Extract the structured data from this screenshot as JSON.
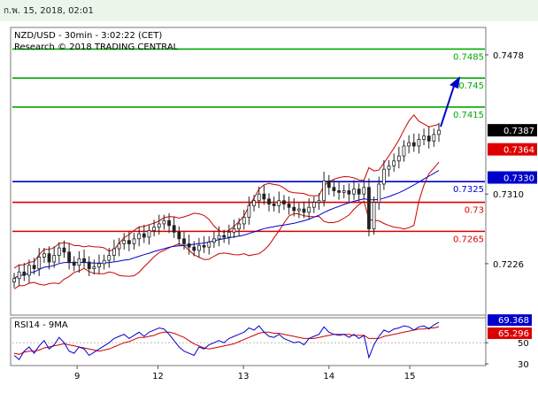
{
  "header": {
    "datetime": "ก.พ. 15, 2018, 02:01"
  },
  "chart_data": {
    "type": "candlestick",
    "title": "NZD/USD - 30min - 3:02:22 (CET)",
    "subtitle": "Research © 2018 TRADING CENTRAL",
    "ylim": [
      0.7165,
      0.751
    ],
    "y_ticks": [
      "0.7478",
      "0.7310",
      "0.7226"
    ],
    "x_ticks": [
      {
        "label": "9",
        "pos": 0.14
      },
      {
        "label": "12",
        "pos": 0.31
      },
      {
        "label": "13",
        "pos": 0.49
      },
      {
        "label": "14",
        "pos": 0.67
      },
      {
        "label": "15",
        "pos": 0.84
      }
    ],
    "levels": [
      {
        "value": 0.7485,
        "label": "0.7485",
        "color": "#00aa00"
      },
      {
        "value": 0.745,
        "label": "0.745",
        "color": "#00aa00"
      },
      {
        "value": 0.7415,
        "label": "0.7415",
        "color": "#00aa00"
      },
      {
        "value": 0.7325,
        "label": "0.7325",
        "color": "#0000cc"
      },
      {
        "value": 0.73,
        "label": "0.73",
        "color": "#dd0000"
      },
      {
        "value": 0.7265,
        "label": "0.7265",
        "color": "#dd0000"
      }
    ],
    "price_tags": [
      {
        "value": 0.7387,
        "label": "0.7387",
        "bg": "#000000",
        "fg": "#ffffff"
      },
      {
        "value": 0.7364,
        "label": "0.7364",
        "bg": "#dd0000",
        "fg": "#ffffff"
      },
      {
        "value": 0.733,
        "label": "0.7330",
        "bg": "#0000cc",
        "fg": "#ffffff"
      }
    ],
    "close": [
      0.7208,
      0.7216,
      0.7212,
      0.7224,
      0.722,
      0.7234,
      0.7238,
      0.7228,
      0.7236,
      0.7245,
      0.724,
      0.7228,
      0.7224,
      0.7232,
      0.7228,
      0.722,
      0.7222,
      0.7226,
      0.723,
      0.7236,
      0.7244,
      0.725,
      0.7254,
      0.725,
      0.7256,
      0.7262,
      0.7258,
      0.7266,
      0.727,
      0.7274,
      0.7278,
      0.7272,
      0.7264,
      0.7256,
      0.725,
      0.7246,
      0.7242,
      0.7248,
      0.7246,
      0.7252,
      0.7256,
      0.726,
      0.7258,
      0.7264,
      0.7268,
      0.7274,
      0.7282,
      0.7296,
      0.7302,
      0.731,
      0.7304,
      0.7298,
      0.7296,
      0.7302,
      0.7298,
      0.7294,
      0.729,
      0.7292,
      0.7288,
      0.7294,
      0.73,
      0.7302,
      0.7326,
      0.7318,
      0.7314,
      0.7312,
      0.7314,
      0.731,
      0.7316,
      0.731,
      0.7318,
      0.7268,
      0.73,
      0.7322,
      0.734,
      0.7344,
      0.735,
      0.7356,
      0.7368,
      0.7372,
      0.7368,
      0.7376,
      0.738,
      0.7374,
      0.7382,
      0.7387
    ],
    "indicator": {
      "name": "RSI14 - 9MA",
      "ylim": [
        30,
        72
      ],
      "y_ticks": [
        "50",
        "30"
      ],
      "rsi_label": "69.368",
      "ma_label": "65.296",
      "rsi": [
        38,
        34,
        42,
        46,
        40,
        47,
        52,
        44,
        48,
        55,
        50,
        42,
        40,
        46,
        44,
        38,
        41,
        44,
        47,
        50,
        54,
        56,
        58,
        54,
        57,
        60,
        56,
        60,
        62,
        64,
        63,
        58,
        52,
        46,
        42,
        40,
        38,
        46,
        44,
        48,
        50,
        52,
        50,
        54,
        56,
        58,
        60,
        64,
        62,
        66,
        60,
        56,
        55,
        58,
        54,
        52,
        50,
        51,
        48,
        54,
        56,
        58,
        65,
        60,
        58,
        57,
        58,
        55,
        58,
        54,
        57,
        36,
        48,
        56,
        62,
        60,
        63,
        64,
        66,
        65,
        62,
        65,
        66,
        63,
        67,
        69.4
      ],
      "ma": [
        40,
        39,
        41,
        42,
        42,
        43,
        45,
        46,
        47,
        48,
        49,
        48,
        47,
        46,
        45,
        44,
        43,
        42,
        43,
        44,
        46,
        48,
        50,
        51,
        53,
        55,
        55,
        56,
        57,
        59,
        60,
        60,
        59,
        57,
        55,
        52,
        49,
        47,
        45,
        44,
        45,
        46,
        47,
        48,
        49,
        51,
        53,
        55,
        57,
        59,
        60,
        60,
        59,
        59,
        58,
        57,
        56,
        55,
        54,
        54,
        54,
        55,
        56,
        57,
        58,
        58,
        58,
        58,
        57,
        57,
        57,
        54,
        54,
        54,
        56,
        57,
        58,
        59,
        60,
        61,
        62,
        63,
        63,
        64,
        64,
        65.3
      ]
    }
  },
  "colors": {
    "bollinger": "#cc0000",
    "ma_blue": "#0000cc",
    "level_green": "#00aa00",
    "level_red": "#dd0000",
    "level_blue": "#0000cc",
    "arrow": "#0000cc",
    "candle": "#222222"
  }
}
